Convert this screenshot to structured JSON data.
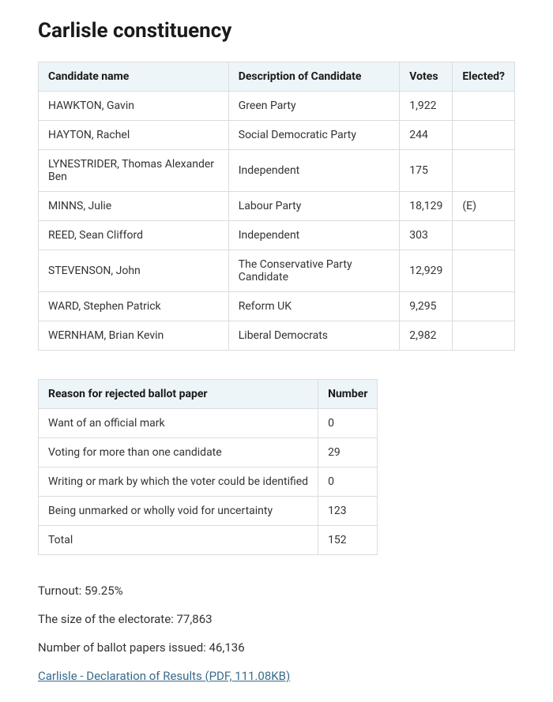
{
  "title": "Carlisle constituency",
  "results_table": {
    "columns": [
      "Candidate name",
      "Description of Candidate",
      "Votes",
      "Elected?"
    ],
    "rows": [
      [
        "HAWKTON, Gavin",
        "Green Party",
        "1,922",
        ""
      ],
      [
        "HAYTON, Rachel",
        "Social Democratic Party",
        "244",
        ""
      ],
      [
        "LYNESTRIDER, Thomas Alexander Ben",
        "Independent",
        "175",
        ""
      ],
      [
        "MINNS, Julie",
        "Labour Party",
        "18,129",
        "(E)"
      ],
      [
        "REED, Sean Clifford",
        "Independent",
        "303",
        ""
      ],
      [
        "STEVENSON, John",
        "The Conservative Party Candidate",
        "12,929",
        ""
      ],
      [
        "WARD, Stephen Patrick",
        "Reform UK",
        "9,295",
        ""
      ],
      [
        "WERNHAM, Brian Kevin",
        "Liberal Democrats",
        "2,982",
        ""
      ]
    ]
  },
  "rejected_table": {
    "columns": [
      "Reason for rejected ballot paper",
      "Number"
    ],
    "rows": [
      [
        "Want of an official mark",
        "0"
      ],
      [
        "Voting for more than one candidate",
        "29"
      ],
      [
        "Writing or mark by which the voter could be identified",
        "0"
      ],
      [
        "Being unmarked or wholly void for uncertainty",
        "123"
      ],
      [
        "Total",
        "152"
      ]
    ]
  },
  "summary": {
    "turnout": "Turnout: 59.25%",
    "electorate": "The size of the electorate: 77,863",
    "ballots": "Number of ballot papers issued: 46,136"
  },
  "link": {
    "text": "Carlisle - Declaration of Results (PDF, 111.08KB)"
  }
}
